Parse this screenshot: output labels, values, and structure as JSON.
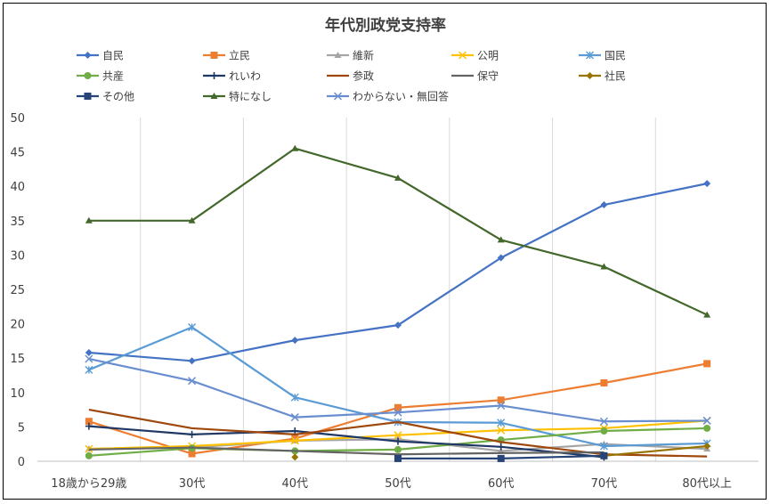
{
  "chart_data": {
    "type": "line",
    "title": "年代別政党支持率",
    "categories": [
      "18歳から29歳",
      "30代",
      "40代",
      "50代",
      "60代",
      "70代",
      "80代以上"
    ],
    "yticks": [
      "0",
      "5",
      "10",
      "15",
      "20",
      "25",
      "30",
      "35",
      "40",
      "45",
      "50"
    ],
    "ylim": [
      0,
      50
    ],
    "grid": "vertical",
    "legend_position": "top",
    "series": [
      {
        "name": "自民",
        "color": "#4472C4",
        "marker": "diamond",
        "values": [
          15.8,
          14.6,
          17.6,
          19.8,
          29.6,
          37.3,
          40.4
        ]
      },
      {
        "name": "立民",
        "color": "#ED7D31",
        "marker": "square",
        "values": [
          5.8,
          1.1,
          3.3,
          7.8,
          8.9,
          11.4,
          14.2
        ]
      },
      {
        "name": "維新",
        "color": "#A5A5A5",
        "marker": "triangle",
        "values": [
          1.8,
          2.0,
          3.0,
          3.2,
          1.5,
          2.5,
          1.8
        ]
      },
      {
        "name": "公明",
        "color": "#FFC000",
        "marker": "x",
        "values": [
          1.8,
          2.2,
          3.0,
          3.8,
          4.5,
          4.8,
          5.9
        ]
      },
      {
        "name": "国民",
        "color": "#5B9BD5",
        "marker": "star",
        "values": [
          13.3,
          19.5,
          9.3,
          5.7,
          5.6,
          2.2,
          2.6
        ]
      },
      {
        "name": "共産",
        "color": "#70AD47",
        "marker": "circle",
        "values": [
          0.8,
          1.9,
          1.5,
          1.7,
          3.1,
          4.4,
          4.8
        ]
      },
      {
        "name": "れいわ",
        "color": "#1F3864",
        "marker": "plus",
        "values": [
          5.1,
          3.9,
          4.4,
          2.9,
          2.1,
          0.6,
          null
        ]
      },
      {
        "name": "参政",
        "color": "#9E480E",
        "marker": "none",
        "values": [
          7.5,
          4.8,
          3.9,
          5.7,
          2.8,
          1.0,
          0.7
        ]
      },
      {
        "name": "保守",
        "color": "#636363",
        "marker": "none",
        "values": [
          1.7,
          2.0,
          1.5,
          1.0,
          1.2,
          1.3,
          null
        ]
      },
      {
        "name": "社民",
        "color": "#997300",
        "marker": "diamond",
        "values": [
          null,
          null,
          0.6,
          null,
          null,
          0.8,
          2.2
        ]
      },
      {
        "name": "その他",
        "color": "#264478",
        "marker": "square",
        "values": [
          null,
          null,
          null,
          0.4,
          0.4,
          0.8,
          null
        ]
      },
      {
        "name": "特になし",
        "color": "#43682B",
        "marker": "triangle",
        "values": [
          35.0,
          35.0,
          45.5,
          41.2,
          32.2,
          28.3,
          21.3
        ]
      },
      {
        "name": "わからない・無回答",
        "color": "#698ED0",
        "marker": "x",
        "values": [
          14.9,
          11.7,
          6.4,
          7.1,
          8.1,
          5.8,
          5.9
        ]
      }
    ]
  }
}
